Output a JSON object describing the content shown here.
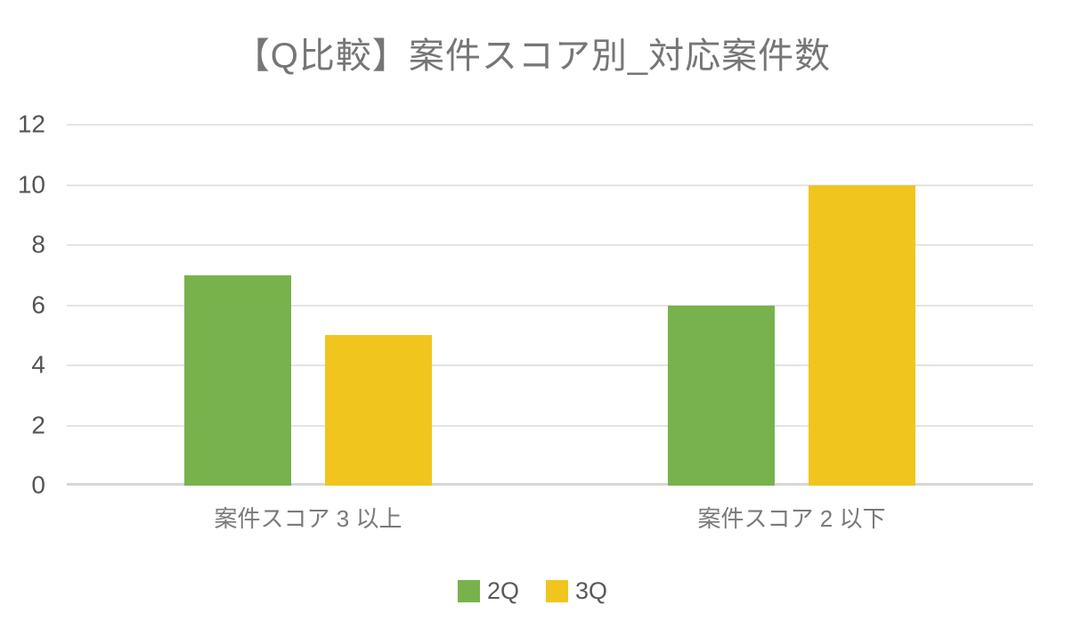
{
  "title": "【Q比較】案件スコア別_対応案件数",
  "colors": {
    "series_2q": "#77B24D",
    "series_3q": "#F0C51E",
    "gridline": "#E4E4E4",
    "axis_line": "#D6D6D6",
    "title_text": "#767676",
    "tick_text": "#545454",
    "category_text": "#7A7A7A",
    "legend_text": "#595959"
  },
  "chart_data": {
    "type": "bar",
    "title": "【Q比較】案件スコア別_対応案件数",
    "categories": [
      "案件スコア 3 以上",
      "案件スコア 2 以下"
    ],
    "series": [
      {
        "name": "2Q",
        "color": "#77B24D",
        "values": [
          7,
          6
        ]
      },
      {
        "name": "3Q",
        "color": "#F0C51E",
        "values": [
          5,
          10
        ]
      }
    ],
    "xlabel": "",
    "ylabel": "",
    "ylim": [
      0,
      12
    ],
    "yticks": [
      0,
      2,
      4,
      6,
      8,
      10,
      12
    ],
    "grid": true,
    "legend_position": "bottom"
  },
  "legend": {
    "items": [
      {
        "label": "2Q"
      },
      {
        "label": "3Q"
      }
    ]
  }
}
